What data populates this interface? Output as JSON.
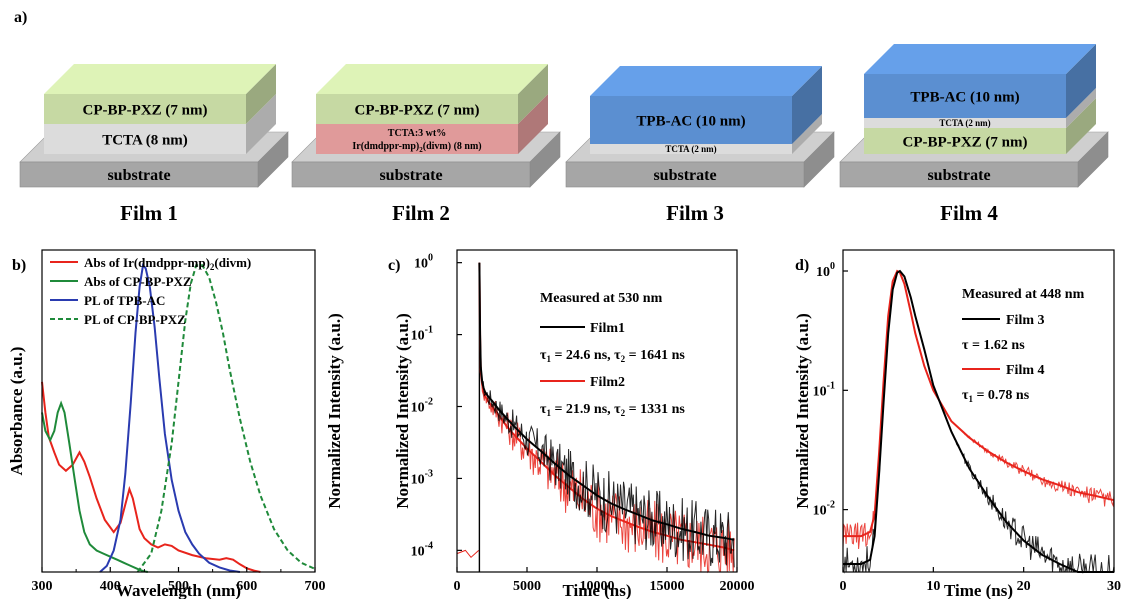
{
  "panel_a": {
    "label": "a)",
    "films": [
      {
        "caption": "Film 1",
        "substrate": "substrate",
        "layers": [
          {
            "text": [
              "TCTA (8 nm)"
            ],
            "color": "#dcdcdc"
          },
          {
            "text": [
              "CP-BP-PXZ (7 nm)"
            ],
            "color": "#c6d9a3"
          }
        ]
      },
      {
        "caption": "Film 2",
        "substrate": "substrate",
        "layers": [
          {
            "text": [
              "TCTA:3 wt%",
              "Ir(dmdppr-mp)",
              "2",
              "(divm) (8 nm)"
            ],
            "color": "#e09a9a"
          },
          {
            "text": [
              "CP-BP-PXZ (7 nm)"
            ],
            "color": "#c6d9a3"
          }
        ]
      },
      {
        "caption": "Film 3",
        "substrate": "substrate",
        "layers": [
          {
            "text": [
              "TCTA (2 nm)"
            ],
            "color": "#dcdcdc"
          },
          {
            "text": [
              "TPB-AC (10 nm)"
            ],
            "color": "#5b8fd1"
          }
        ]
      },
      {
        "caption": "Film 4",
        "substrate": "substrate",
        "layers": [
          {
            "text": [
              "CP-BP-PXZ (7 nm)"
            ],
            "color": "#c6d9a3"
          },
          {
            "text": [
              "TCTA (2 nm)"
            ],
            "color": "#dcdcdc"
          },
          {
            "text": [
              "TPB-AC (10 nm)"
            ],
            "color": "#5b8fd1"
          }
        ]
      }
    ]
  },
  "chart_data": [
    {
      "panel": "b)",
      "type": "line",
      "xlabel": "Wavelength (nm)",
      "ylabel": "Absorbance (a.u.)",
      "ylabel2": "Normalized Intensity (a.u.)",
      "xlim": [
        300,
        700
      ],
      "ylim": [
        0,
        1.05
      ],
      "xticks": [
        "300",
        "400",
        "500",
        "600",
        "700"
      ],
      "legend": [
        {
          "name": "Abs of Ir(dmdppr-mp)",
          "sub": "2",
          "tail": "(divm)",
          "color": "#e8241c",
          "dash": false
        },
        {
          "name": "Abs of CP-BP-PXZ",
          "sub": "",
          "tail": "",
          "color": "#1f8a3a",
          "dash": false
        },
        {
          "name": "PL of TPB-AC",
          "sub": "",
          "tail": "",
          "color": "#2a3bb0",
          "dash": false
        },
        {
          "name": "PL of CP-BP-PXZ",
          "sub": "",
          "tail": "",
          "color": "#1f8a3a",
          "dash": true
        }
      ],
      "series": [
        {
          "color": "#e8241c",
          "dash": false,
          "x": [
            300,
            305,
            310,
            318,
            325,
            335,
            345,
            355,
            362,
            370,
            380,
            392,
            405,
            415,
            422,
            428,
            433,
            438,
            443,
            450,
            460,
            470,
            480,
            490,
            500,
            520,
            540,
            560,
            570,
            580,
            590,
            600,
            610,
            620
          ],
          "y": [
            0.62,
            0.52,
            0.44,
            0.39,
            0.35,
            0.33,
            0.35,
            0.39,
            0.36,
            0.31,
            0.24,
            0.17,
            0.13,
            0.16,
            0.22,
            0.27,
            0.24,
            0.19,
            0.14,
            0.11,
            0.09,
            0.08,
            0.09,
            0.085,
            0.07,
            0.055,
            0.045,
            0.04,
            0.045,
            0.04,
            0.025,
            0.012,
            0.005,
            0.0
          ]
        },
        {
          "color": "#1f8a3a",
          "dash": false,
          "x": [
            300,
            305,
            312,
            318,
            323,
            328,
            333,
            340,
            348,
            355,
            362,
            370,
            380,
            390,
            400,
            410,
            420,
            430,
            440,
            448,
            455
          ],
          "y": [
            0.52,
            0.46,
            0.43,
            0.46,
            0.52,
            0.55,
            0.52,
            0.42,
            0.3,
            0.2,
            0.13,
            0.09,
            0.07,
            0.06,
            0.05,
            0.04,
            0.03,
            0.02,
            0.01,
            0.003,
            0.0
          ]
        },
        {
          "color": "#2a3bb0",
          "dash": false,
          "x": [
            385,
            395,
            405,
            415,
            422,
            430,
            437,
            443,
            448,
            452,
            458,
            465,
            472,
            480,
            490,
            500,
            510,
            520,
            530,
            545,
            560,
            575,
            590
          ],
          "y": [
            0.0,
            0.02,
            0.07,
            0.17,
            0.32,
            0.55,
            0.78,
            0.93,
            1.0,
            0.99,
            0.93,
            0.8,
            0.63,
            0.45,
            0.3,
            0.2,
            0.13,
            0.09,
            0.06,
            0.03,
            0.015,
            0.005,
            0.0
          ]
        },
        {
          "color": "#1f8a3a",
          "dash": true,
          "x": [
            440,
            460,
            475,
            490,
            500,
            510,
            518,
            526,
            535,
            545,
            555,
            565,
            575,
            590,
            605,
            620,
            640,
            660,
            680,
            700
          ],
          "y": [
            0.0,
            0.06,
            0.2,
            0.42,
            0.62,
            0.82,
            0.94,
            1.0,
            1.0,
            0.96,
            0.88,
            0.78,
            0.66,
            0.5,
            0.36,
            0.25,
            0.14,
            0.07,
            0.03,
            0.01
          ]
        }
      ]
    },
    {
      "panel": "c)",
      "type": "line",
      "scale_y": "log",
      "xlabel": "Time (ns)",
      "ylabel": "Normalized Intensity (a.u.)",
      "xlim": [
        0,
        20000
      ],
      "ylim": [
        5e-05,
        1.5
      ],
      "xticks": [
        "0",
        "5000",
        "10000",
        "15000",
        "20000"
      ],
      "yticks": [
        {
          "base": "10",
          "exp": "0"
        },
        {
          "base": "10",
          "exp": "-1"
        },
        {
          "base": "10",
          "exp": "-2"
        },
        {
          "base": "10",
          "exp": "-3"
        },
        {
          "base": "10",
          "exp": "-4"
        }
      ],
      "annotation": "Measured at 530 nm",
      "legend": [
        {
          "name": "Film1",
          "color": "#000000",
          "tau": [
            {
              "sym": "τ",
              "sub": "1",
              "val": " = 24.6 ns, "
            },
            {
              "sym": "τ",
              "sub": "2",
              "val": " = 1641 ns"
            }
          ]
        },
        {
          "name": "Film2",
          "color": "#e8241c",
          "tau": [
            {
              "sym": "τ",
              "sub": "1",
              "val": " = 21.9 ns, "
            },
            {
              "sym": "τ",
              "sub": "2",
              "val": " = 1331 ns"
            }
          ]
        }
      ],
      "series": [
        {
          "name": "Film1",
          "color": "#000000",
          "x": [
            1600,
            1650,
            1700,
            1800,
            1900,
            2000,
            2200,
            2500,
            3000,
            3500,
            4000,
            5000,
            6000,
            7000,
            8000,
            9000,
            10000,
            11000,
            12000,
            13000,
            14000,
            15000,
            16000,
            17000,
            18000,
            19000,
            19800
          ],
          "y": [
            1.0,
            0.1,
            0.035,
            0.022,
            0.018,
            0.016,
            0.014,
            0.012,
            0.009,
            0.007,
            0.0055,
            0.0035,
            0.0024,
            0.0016,
            0.0011,
            0.0008,
            0.00058,
            0.00045,
            0.00037,
            0.00031,
            0.00026,
            0.00023,
            0.0002,
            0.00018,
            0.00016,
            0.00015,
            0.00014
          ]
        },
        {
          "name": "Film2",
          "color": "#e8241c",
          "x": [
            1600,
            1650,
            1700,
            1800,
            1900,
            2000,
            2200,
            2500,
            3000,
            3500,
            4000,
            5000,
            6000,
            7000,
            8000,
            9000,
            10000,
            11000,
            12000,
            13000,
            14000,
            15000,
            16000,
            17000,
            18000,
            19000,
            19800
          ],
          "y": [
            1.0,
            0.09,
            0.03,
            0.02,
            0.016,
            0.014,
            0.012,
            0.01,
            0.0075,
            0.0055,
            0.0042,
            0.0026,
            0.0017,
            0.0011,
            0.00075,
            0.00052,
            0.00038,
            0.0003,
            0.00025,
            0.00021,
            0.00018,
            0.00016,
            0.00014,
            0.00013,
            0.00012,
            0.00011,
            0.0001
          ]
        }
      ]
    },
    {
      "panel": "d)",
      "type": "line",
      "scale_y": "log",
      "xlabel": "Time (ns)",
      "ylabel": "Normalized Intensity (a.u.)",
      "xlim": [
        0,
        30
      ],
      "ylim": [
        0.003,
        1.5
      ],
      "xticks": [
        "0",
        "10",
        "20",
        "30"
      ],
      "yticks": [
        {
          "base": "10",
          "exp": "0"
        },
        {
          "base": "10",
          "exp": "-1"
        },
        {
          "base": "10",
          "exp": "-2"
        }
      ],
      "annotation": "Measured at 448 nm",
      "legend": [
        {
          "name": "Film 3",
          "color": "#000000",
          "tau": [
            {
              "sym": "τ",
              "sub": "",
              "val": " = 1.62 ns"
            }
          ]
        },
        {
          "name": "Film 4",
          "color": "#e8241c",
          "tau": [
            {
              "sym": "τ",
              "sub": "1",
              "val": " = 0.78 ns"
            }
          ]
        }
      ],
      "series": [
        {
          "name": "Film 3",
          "color": "#000000",
          "x": [
            0,
            2,
            3,
            3.5,
            4,
            4.5,
            5,
            5.5,
            6,
            6.3,
            6.8,
            7.5,
            8,
            9,
            10,
            12,
            14,
            16,
            18,
            20,
            22,
            24,
            26,
            28,
            30
          ],
          "y": [
            0.0035,
            0.0035,
            0.0038,
            0.006,
            0.02,
            0.08,
            0.3,
            0.7,
            0.97,
            1.0,
            0.9,
            0.6,
            0.42,
            0.22,
            0.11,
            0.045,
            0.022,
            0.013,
            0.008,
            0.0055,
            0.0042,
            0.0035,
            0.003,
            0.003,
            0.003
          ]
        },
        {
          "name": "Film 4",
          "color": "#e8241c",
          "x": [
            0,
            2,
            3,
            3.5,
            4,
            4.5,
            5,
            5.5,
            6,
            6.3,
            6.8,
            7.5,
            8,
            9,
            10,
            12,
            14,
            16,
            18,
            20,
            22,
            24,
            26,
            28,
            30
          ],
          "y": [
            0.006,
            0.006,
            0.0065,
            0.009,
            0.03,
            0.12,
            0.42,
            0.82,
            1.0,
            0.97,
            0.78,
            0.45,
            0.3,
            0.16,
            0.1,
            0.055,
            0.04,
            0.031,
            0.025,
            0.021,
            0.018,
            0.016,
            0.014,
            0.013,
            0.012
          ]
        }
      ]
    }
  ]
}
